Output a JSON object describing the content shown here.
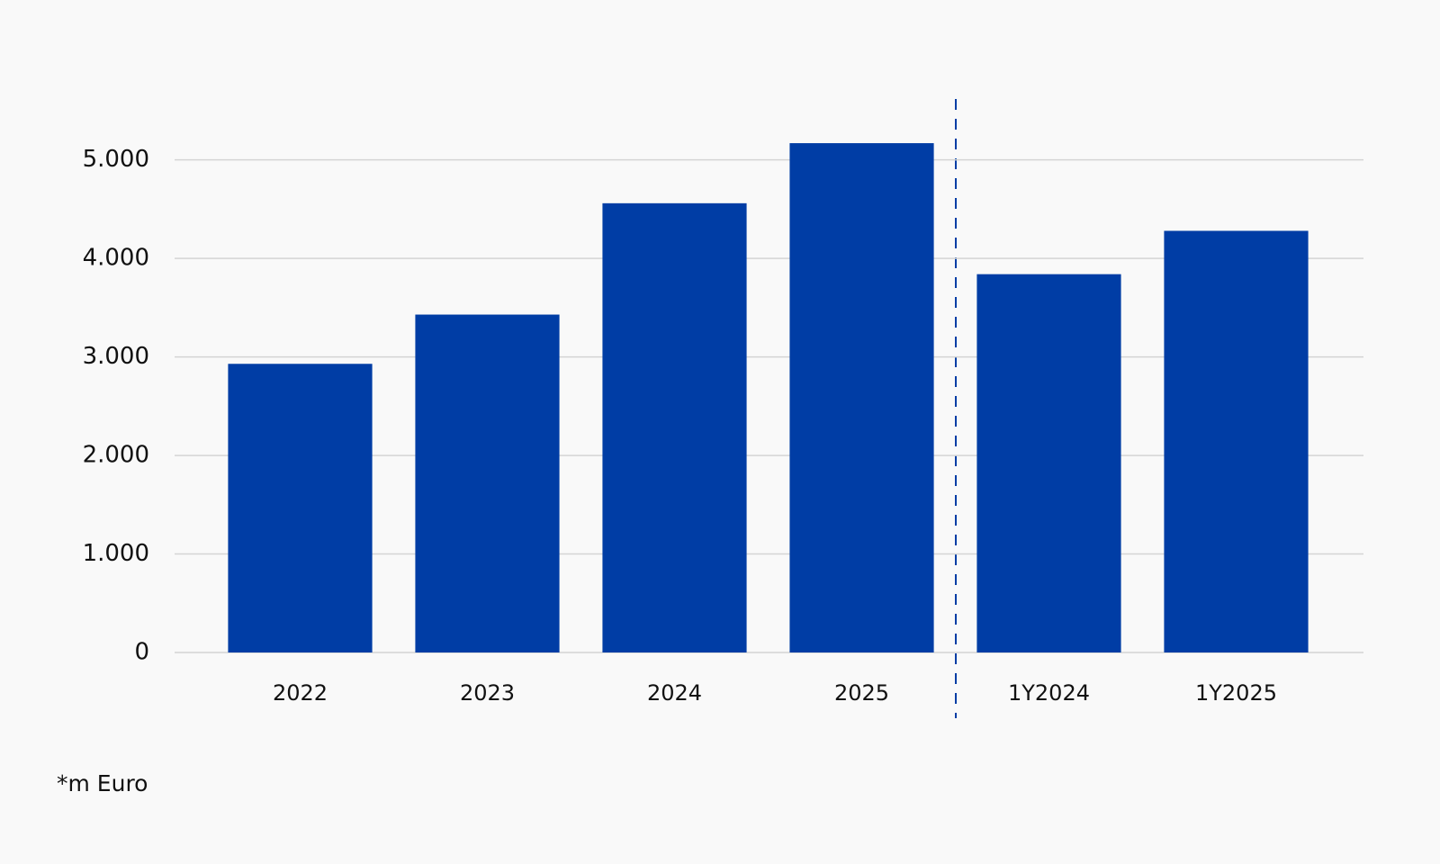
{
  "chart_data": {
    "type": "bar",
    "categories": [
      "2022",
      "2023",
      "2024",
      "2025",
      "1Y2024",
      "1Y2025"
    ],
    "values": [
      2930,
      3430,
      4560,
      5170,
      3840,
      4280
    ],
    "color": "#003da5",
    "ylim": [
      0,
      5600
    ],
    "yticks": [
      0,
      {
        "value": 1000,
        "label": "1.000"
      },
      {
        "value": 2000,
        "label": "2.000"
      },
      {
        "value": 3000,
        "label": "3.000"
      },
      {
        "value": 4000,
        "label": "4.000"
      },
      {
        "value": 5000,
        "label": "5.000"
      }
    ],
    "grid": true,
    "note": "*m Euro"
  }
}
